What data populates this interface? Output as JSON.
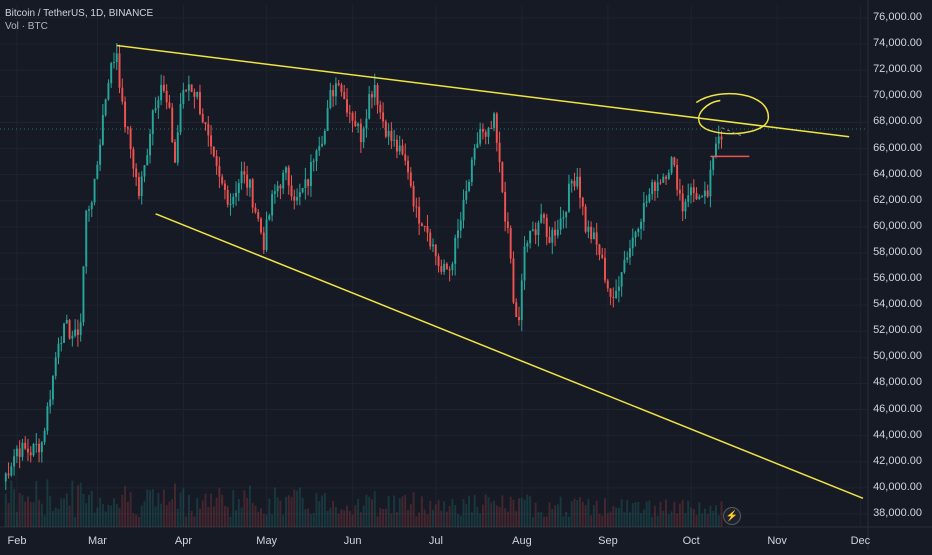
{
  "header": {
    "symbol_line": "Bitcoin / TetherUS, 1D, BINANCE",
    "vol_line": "Vol · BTC"
  },
  "colors": {
    "background": "#161a25",
    "up": "#26a69a",
    "down": "#ef5350",
    "trendline": "#f0e442",
    "grid": "#1f2330",
    "text": "#d1d4dc"
  },
  "icons": {
    "flash": "lightning-icon"
  },
  "chart_data": {
    "type": "candlestick",
    "title": "Bitcoin / TetherUS, 1D, BINANCE",
    "y_axis": {
      "ylim": [
        37000,
        77000
      ],
      "ticks": [
        "76,000.00",
        "74,000.00",
        "72,000.00",
        "70,000.00",
        "68,000.00",
        "66,000.00",
        "64,000.00",
        "62,000.00",
        "60,000.00",
        "58,000.00",
        "56,000.00",
        "54,000.00",
        "52,000.00",
        "50,000.00",
        "48,000.00",
        "46,000.00",
        "44,000.00",
        "42,000.00",
        "40,000.00",
        "38,000.00"
      ],
      "tick_values": [
        76000,
        74000,
        72000,
        70000,
        68000,
        66000,
        64000,
        62000,
        60000,
        58000,
        56000,
        54000,
        52000,
        50000,
        48000,
        46000,
        44000,
        42000,
        40000,
        38000
      ],
      "side": "right"
    },
    "x_axis": {
      "months": [
        "Feb",
        "Mar",
        "Apr",
        "May",
        "Jun",
        "Jul",
        "Aug",
        "Sep",
        "Oct",
        "Nov",
        "Dec"
      ],
      "month_day_index": [
        0,
        29,
        60,
        90,
        121,
        151,
        182,
        213,
        243,
        274,
        304
      ],
      "total_days": 310
    },
    "price_path": [
      [
        0,
        40500
      ],
      [
        5,
        43000
      ],
      [
        10,
        42800
      ],
      [
        14,
        43500
      ],
      [
        18,
        48500
      ],
      [
        20,
        51500
      ],
      [
        23,
        52200
      ],
      [
        26,
        51500
      ],
      [
        28,
        52800
      ],
      [
        30,
        61000
      ],
      [
        33,
        63000
      ],
      [
        36,
        68500
      ],
      [
        38,
        71500
      ],
      [
        41,
        73500
      ],
      [
        43,
        69000
      ],
      [
        46,
        66000
      ],
      [
        49,
        62500
      ],
      [
        51,
        64500
      ],
      [
        54,
        69000
      ],
      [
        57,
        71000
      ],
      [
        60,
        68500
      ],
      [
        62,
        65000
      ],
      [
        64,
        69500
      ],
      [
        67,
        71000
      ],
      [
        70,
        70000
      ],
      [
        73,
        67500
      ],
      [
        75,
        65500
      ],
      [
        78,
        63500
      ],
      [
        82,
        62000
      ],
      [
        86,
        64000
      ],
      [
        89,
        63000
      ],
      [
        92,
        60500
      ],
      [
        94,
        58800
      ],
      [
        97,
        62000
      ],
      [
        99,
        63200
      ],
      [
        102,
        64000
      ],
      [
        106,
        62000
      ],
      [
        110,
        63500
      ],
      [
        113,
        66500
      ],
      [
        116,
        67300
      ],
      [
        118,
        70000
      ],
      [
        121,
        71500
      ],
      [
        123,
        69800
      ],
      [
        126,
        68500
      ],
      [
        129,
        67000
      ],
      [
        132,
        70000
      ],
      [
        134,
        71000
      ],
      [
        136,
        68800
      ],
      [
        139,
        67000
      ],
      [
        142,
        66000
      ],
      [
        146,
        64500
      ],
      [
        149,
        61000
      ],
      [
        152,
        60500
      ],
      [
        155,
        58500
      ],
      [
        158,
        56500
      ],
      [
        161,
        56800
      ],
      [
        164,
        59500
      ],
      [
        167,
        62500
      ],
      [
        170,
        65500
      ],
      [
        172,
        67500
      ],
      [
        174,
        66500
      ],
      [
        177,
        68000
      ],
      [
        179,
        64500
      ],
      [
        181,
        61000
      ],
      [
        183,
        57500
      ],
      [
        184,
        54000
      ],
      [
        186,
        52500
      ],
      [
        188,
        58500
      ],
      [
        191,
        59500
      ],
      [
        194,
        61000
      ],
      [
        196,
        59000
      ],
      [
        199,
        59800
      ],
      [
        202,
        61000
      ],
      [
        205,
        63500
      ],
      [
        207,
        64000
      ],
      [
        210,
        60000
      ],
      [
        213,
        59000
      ],
      [
        215,
        58000
      ],
      [
        218,
        55500
      ],
      [
        220,
        54000
      ],
      [
        223,
        57000
      ],
      [
        226,
        58500
      ],
      [
        229,
        60500
      ],
      [
        232,
        62000
      ],
      [
        235,
        63300
      ],
      [
        238,
        64000
      ],
      [
        241,
        65000
      ],
      [
        243,
        63500
      ],
      [
        245,
        61500
      ],
      [
        247,
        62800
      ],
      [
        250,
        62500
      ],
      [
        252,
        61800
      ],
      [
        254,
        62500
      ],
      [
        256,
        65000
      ],
      [
        257,
        66500
      ],
      [
        258,
        67500
      ],
      [
        259,
        67100
      ]
    ],
    "volume_profile": "low, declining toward autumn",
    "trendlines": [
      {
        "name": "upper-trendline",
        "p1": [
          41,
          73900
        ],
        "p2": [
          305,
          66900
        ]
      },
      {
        "name": "lower-trendline",
        "p1": [
          55,
          61000
        ],
        "p2": [
          310,
          39200
        ]
      },
      {
        "name": "support-mark",
        "p1": [
          255,
          65400
        ],
        "p2": [
          269,
          65400
        ],
        "color": "#ef5350"
      }
    ],
    "annotations": [
      {
        "type": "ellipse",
        "center": [
          260,
          68000
        ],
        "color": "#f0e442"
      },
      {
        "type": "dashed-arrow",
        "from": [
          259,
          67600
        ],
        "to": [
          266,
          67000
        ]
      }
    ],
    "last_price_line": 67500,
    "grid": true
  }
}
